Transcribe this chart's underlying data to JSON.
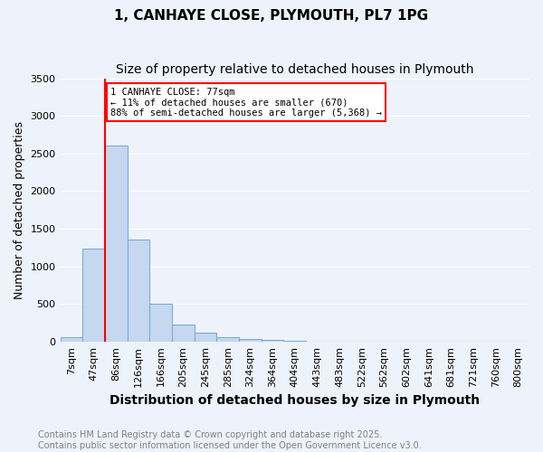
{
  "title": "1, CANHAYE CLOSE, PLYMOUTH, PL7 1PG",
  "subtitle": "Size of property relative to detached houses in Plymouth",
  "xlabel": "Distribution of detached houses by size in Plymouth",
  "ylabel": "Number of detached properties",
  "bins": [
    "7sqm",
    "47sqm",
    "86sqm",
    "126sqm",
    "166sqm",
    "205sqm",
    "245sqm",
    "285sqm",
    "324sqm",
    "364sqm",
    "404sqm",
    "443sqm",
    "483sqm",
    "522sqm",
    "562sqm",
    "602sqm",
    "641sqm",
    "681sqm",
    "721sqm",
    "760sqm",
    "800sqm"
  ],
  "values": [
    60,
    1230,
    2600,
    1350,
    500,
    220,
    120,
    55,
    30,
    20,
    8,
    3,
    1,
    0,
    0,
    0,
    0,
    0,
    0,
    0,
    0
  ],
  "bar_color": "#c5d8f0",
  "bar_edge_color": "#7aadd4",
  "vline_color": "red",
  "vline_pos": 1.5,
  "annotation_text": "1 CANHAYE CLOSE: 77sqm\n← 11% of detached houses are smaller (670)\n88% of semi-detached houses are larger (5,368) →",
  "annotation_box_color": "white",
  "annotation_box_edge_color": "red",
  "ylim": [
    0,
    3500
  ],
  "yticks": [
    0,
    500,
    1000,
    1500,
    2000,
    2500,
    3000,
    3500
  ],
  "footer_line1": "Contains HM Land Registry data © Crown copyright and database right 2025.",
  "footer_line2": "Contains public sector information licensed under the Open Government Licence v3.0.",
  "bg_color": "#eef2fb",
  "grid_color": "white",
  "title_fontsize": 11,
  "subtitle_fontsize": 10,
  "axis_label_fontsize": 9,
  "tick_fontsize": 8,
  "footer_fontsize": 7
}
